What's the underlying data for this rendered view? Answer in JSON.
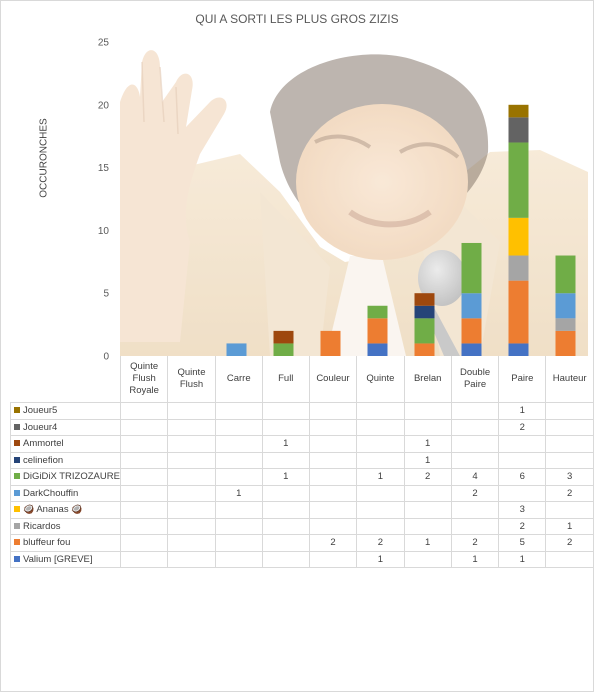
{
  "chart_data": {
    "type": "bar",
    "stacked": true,
    "title": "QUI A SORTI LES PLUS GROS ZIZIS",
    "xlabel": "",
    "ylabel": "OCCURONCHES",
    "ylim": [
      0,
      25
    ],
    "yticks": [
      "0",
      "5",
      "10",
      "15",
      "20",
      "25"
    ],
    "grid": false,
    "legend_placement": "data-table-below",
    "categories": [
      "Quinte Flush Royale",
      "Quinte Flush",
      "Carre",
      "Full",
      "Couleur",
      "Quinte",
      "Brelan",
      "Double Paire",
      "Paire",
      "Hauteur"
    ],
    "category_lines": [
      [
        "Quinte",
        "Flush",
        "Royale"
      ],
      [
        "Quinte",
        "Flush"
      ],
      [
        "Carre"
      ],
      [
        "Full"
      ],
      [
        "Couleur"
      ],
      [
        "Quinte"
      ],
      [
        "Brelan"
      ],
      [
        "Double",
        "Paire"
      ],
      [
        "Paire"
      ],
      [
        "Hauteur"
      ]
    ],
    "series": [
      {
        "name": "Valium [GREVE]",
        "color": "#4472c4",
        "values": [
          null,
          null,
          null,
          null,
          null,
          1,
          null,
          1,
          1,
          null
        ]
      },
      {
        "name": "bluffeur fou",
        "color": "#ed7d31",
        "values": [
          null,
          null,
          null,
          null,
          2,
          2,
          1,
          2,
          5,
          2
        ]
      },
      {
        "name": "Ricardos",
        "color": "#a5a5a5",
        "values": [
          null,
          null,
          null,
          null,
          null,
          null,
          null,
          null,
          2,
          1
        ]
      },
      {
        "name": "Ananas",
        "prefix": "🥥",
        "suffix": "🥥",
        "color": "#ffc000",
        "values": [
          null,
          null,
          null,
          null,
          null,
          null,
          null,
          null,
          3,
          null
        ]
      },
      {
        "name": "DarkChouffin",
        "color": "#5b9bd5",
        "values": [
          null,
          null,
          1,
          null,
          null,
          null,
          null,
          2,
          null,
          2
        ]
      },
      {
        "name": "DiGiDiX TRIZOZAURE",
        "color": "#70ad47",
        "values": [
          null,
          null,
          null,
          1,
          null,
          1,
          2,
          4,
          6,
          3
        ]
      },
      {
        "name": "celinefion",
        "color": "#264478",
        "values": [
          null,
          null,
          null,
          null,
          null,
          null,
          1,
          null,
          null,
          null
        ]
      },
      {
        "name": "Ammortel",
        "color": "#9e480e",
        "values": [
          null,
          null,
          null,
          1,
          null,
          null,
          1,
          null,
          null,
          null
        ]
      },
      {
        "name": "Joueur4",
        "color": "#636363",
        "values": [
          null,
          null,
          null,
          null,
          null,
          null,
          null,
          null,
          2,
          null
        ]
      },
      {
        "name": "Joueur5",
        "color": "#997300",
        "values": [
          null,
          null,
          null,
          null,
          null,
          null,
          null,
          null,
          1,
          null
        ]
      }
    ]
  }
}
